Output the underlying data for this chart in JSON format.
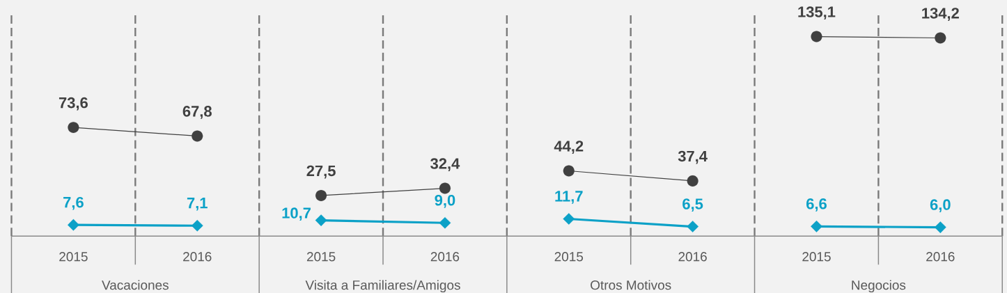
{
  "chart_data": {
    "type": "line",
    "categories": [
      "2015",
      "2016",
      "2015",
      "2016",
      "2015",
      "2016",
      "2015",
      "2016"
    ],
    "ylim": [
      0,
      150
    ],
    "grid": "x",
    "tick_labels": "x",
    "annotations": [
      "Vacaciones",
      "Visita a Familiares/Amigos",
      "Otros Motivos",
      "Negocios"
    ],
    "series": [
      {
        "color": "#404040",
        "marker": "circle",
        "values": [
          73.6,
          67.8,
          null,
          null,
          null,
          null,
          null,
          null
        ],
        "value_labels": [
          "73,6",
          "67,8",
          null,
          null,
          null,
          null,
          null,
          null
        ]
      },
      {
        "color": "#0ca1c7",
        "marker": "diamond",
        "values": [
          7.6,
          7.1,
          null,
          null,
          null,
          null,
          null,
          null
        ],
        "value_labels": [
          "7,6",
          "7,1",
          null,
          null,
          null,
          null,
          null,
          null
        ]
      },
      {
        "color": "#404040",
        "marker": "circle",
        "values": [
          null,
          null,
          27.5,
          32.4,
          null,
          null,
          null,
          null
        ],
        "value_labels": [
          null,
          null,
          "27,5",
          "32,4",
          null,
          null,
          null,
          null
        ]
      },
      {
        "color": "#0ca1c7",
        "marker": "diamond",
        "values": [
          null,
          null,
          10.7,
          9.0,
          null,
          null,
          null,
          null
        ],
        "value_labels": [
          null,
          null,
          "10,7",
          "9,0",
          null,
          null,
          null,
          null
        ]
      },
      {
        "color": "#404040",
        "marker": "circle",
        "values": [
          null,
          null,
          null,
          null,
          44.2,
          37.4,
          null,
          null
        ],
        "value_labels": [
          null,
          null,
          null,
          null,
          "44,2",
          "37,4",
          null,
          null
        ]
      },
      {
        "color": "#0ca1c7",
        "marker": "diamond",
        "values": [
          null,
          null,
          null,
          null,
          11.7,
          6.5,
          null,
          null
        ],
        "value_labels": [
          null,
          null,
          null,
          null,
          "11,7",
          "6,5",
          null,
          null
        ]
      },
      {
        "color": "#404040",
        "marker": "circle",
        "values": [
          null,
          null,
          null,
          null,
          null,
          null,
          135.1,
          134.2
        ],
        "value_labels": [
          null,
          null,
          null,
          null,
          null,
          null,
          "135,1",
          "134,2"
        ]
      },
      {
        "color": "#0ca1c7",
        "marker": "diamond",
        "values": [
          null,
          null,
          null,
          null,
          null,
          null,
          6.6,
          6.0
        ],
        "value_labels": [
          null,
          null,
          null,
          null,
          null,
          null,
          "6,6",
          "6,0"
        ]
      }
    ]
  }
}
